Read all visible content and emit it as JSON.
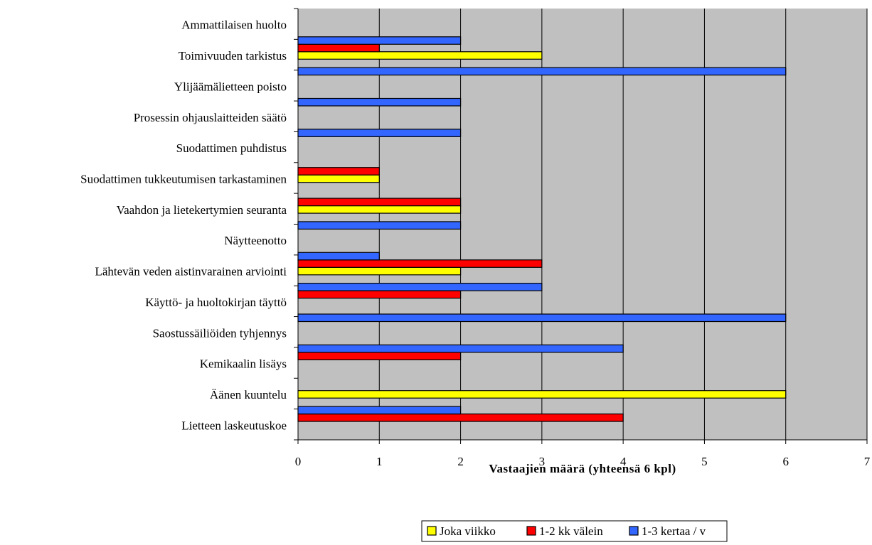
{
  "chart_data": {
    "type": "bar",
    "orientation": "horizontal",
    "categories": [
      "Lietteen laskeutuskoe",
      "Äänen kuuntelu",
      "Kemikaalin lisäys",
      "Saostussäiliöiden tyhjennys",
      "Käyttö- ja huoltokirjan täyttö",
      "Lähtevän veden aistinvarainen arviointi",
      "Näytteenotto",
      "Vaahdon ja lietekertymien seuranta",
      "Suodattimen tukkeutumisen tarkastaminen",
      "Suodattimen puhdistus",
      "Prosessin ohjauslaitteiden säätö",
      "Ylijäämälietteen poisto",
      "Toimivuuden tarkistus",
      "Ammattilaisen huolto"
    ],
    "series": [
      {
        "name": "Joka viikko",
        "color": "#FFFF00",
        "values": [
          0,
          6,
          0,
          0,
          0,
          2,
          0,
          2,
          1,
          0,
          0,
          0,
          3,
          0
        ]
      },
      {
        "name": "1-2 kk välein",
        "color": "#FF0000",
        "values": [
          4,
          0,
          2,
          0,
          2,
          3,
          0,
          2,
          1,
          0,
          0,
          0,
          1,
          0
        ]
      },
      {
        "name": "1-3 kertaa / v",
        "color": "#3366FF",
        "values": [
          2,
          0,
          4,
          6,
          3,
          1,
          2,
          0,
          0,
          2,
          2,
          6,
          2,
          0
        ]
      }
    ],
    "x_ticks": [
      "0",
      "1",
      "2",
      "3",
      "4",
      "5",
      "6",
      "7"
    ],
    "xlim": [
      0,
      7
    ],
    "xlabel": "Vastaajien määrä (yhteensä 6 kpl)",
    "title": "",
    "plot_background": "#C0C0C0",
    "grid": "vertical",
    "legend_position": "bottom"
  }
}
